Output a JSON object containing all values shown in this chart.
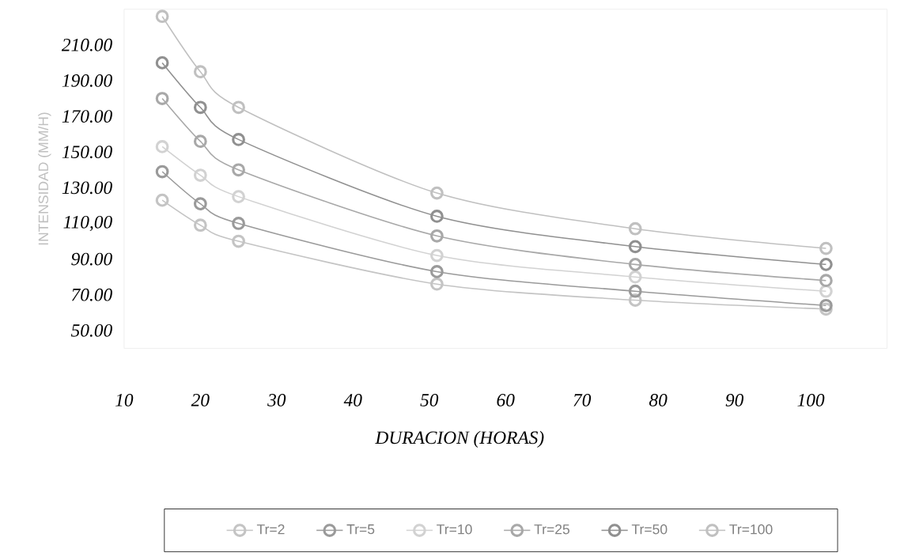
{
  "chart_data": {
    "type": "line",
    "xlabel": "DURACION (HORAS)",
    "ylabel": "INTENSIDAD (MM/H)",
    "x": [
      15,
      20,
      25,
      51,
      77,
      102
    ],
    "series": [
      {
        "name": "Tr=2",
        "color": "#c4c4c4",
        "values": [
          123,
          109,
          100,
          76,
          67,
          62
        ]
      },
      {
        "name": "Tr=5",
        "color": "#9a9a9a",
        "values": [
          139,
          121,
          110,
          83,
          72,
          64
        ]
      },
      {
        "name": "Tr=10",
        "color": "#d2d2d2",
        "values": [
          153,
          137,
          125,
          92,
          80,
          72
        ]
      },
      {
        "name": "Tr=25",
        "color": "#a8a8a8",
        "values": [
          180,
          156,
          140,
          103,
          87,
          78
        ]
      },
      {
        "name": "Tr=50",
        "color": "#909090",
        "values": [
          200,
          175,
          157,
          114,
          97,
          87
        ]
      },
      {
        "name": "Tr=100",
        "color": "#c0c0c0",
        "values": [
          226,
          195,
          175,
          127,
          107,
          96
        ]
      }
    ],
    "xlim": [
      10,
      110
    ],
    "ylim": [
      40,
      230
    ],
    "xticks": [
      10,
      20,
      30,
      40,
      50,
      60,
      70,
      80,
      90,
      100
    ],
    "yticks": [
      {
        "value": 50,
        "label": "50.00"
      },
      {
        "value": 70,
        "label": "70.00"
      },
      {
        "value": 90,
        "label": "90.00"
      },
      {
        "value": 110,
        "label": "110,00"
      },
      {
        "value": 130,
        "label": "130.00"
      },
      {
        "value": 150,
        "label": "150.00"
      },
      {
        "value": 170,
        "label": "170.00"
      },
      {
        "value": 190,
        "label": "190.00"
      },
      {
        "value": 210,
        "label": "210.00"
      }
    ],
    "marker": "circle",
    "line_style": "solid",
    "grid": false,
    "legend": "bottom"
  }
}
